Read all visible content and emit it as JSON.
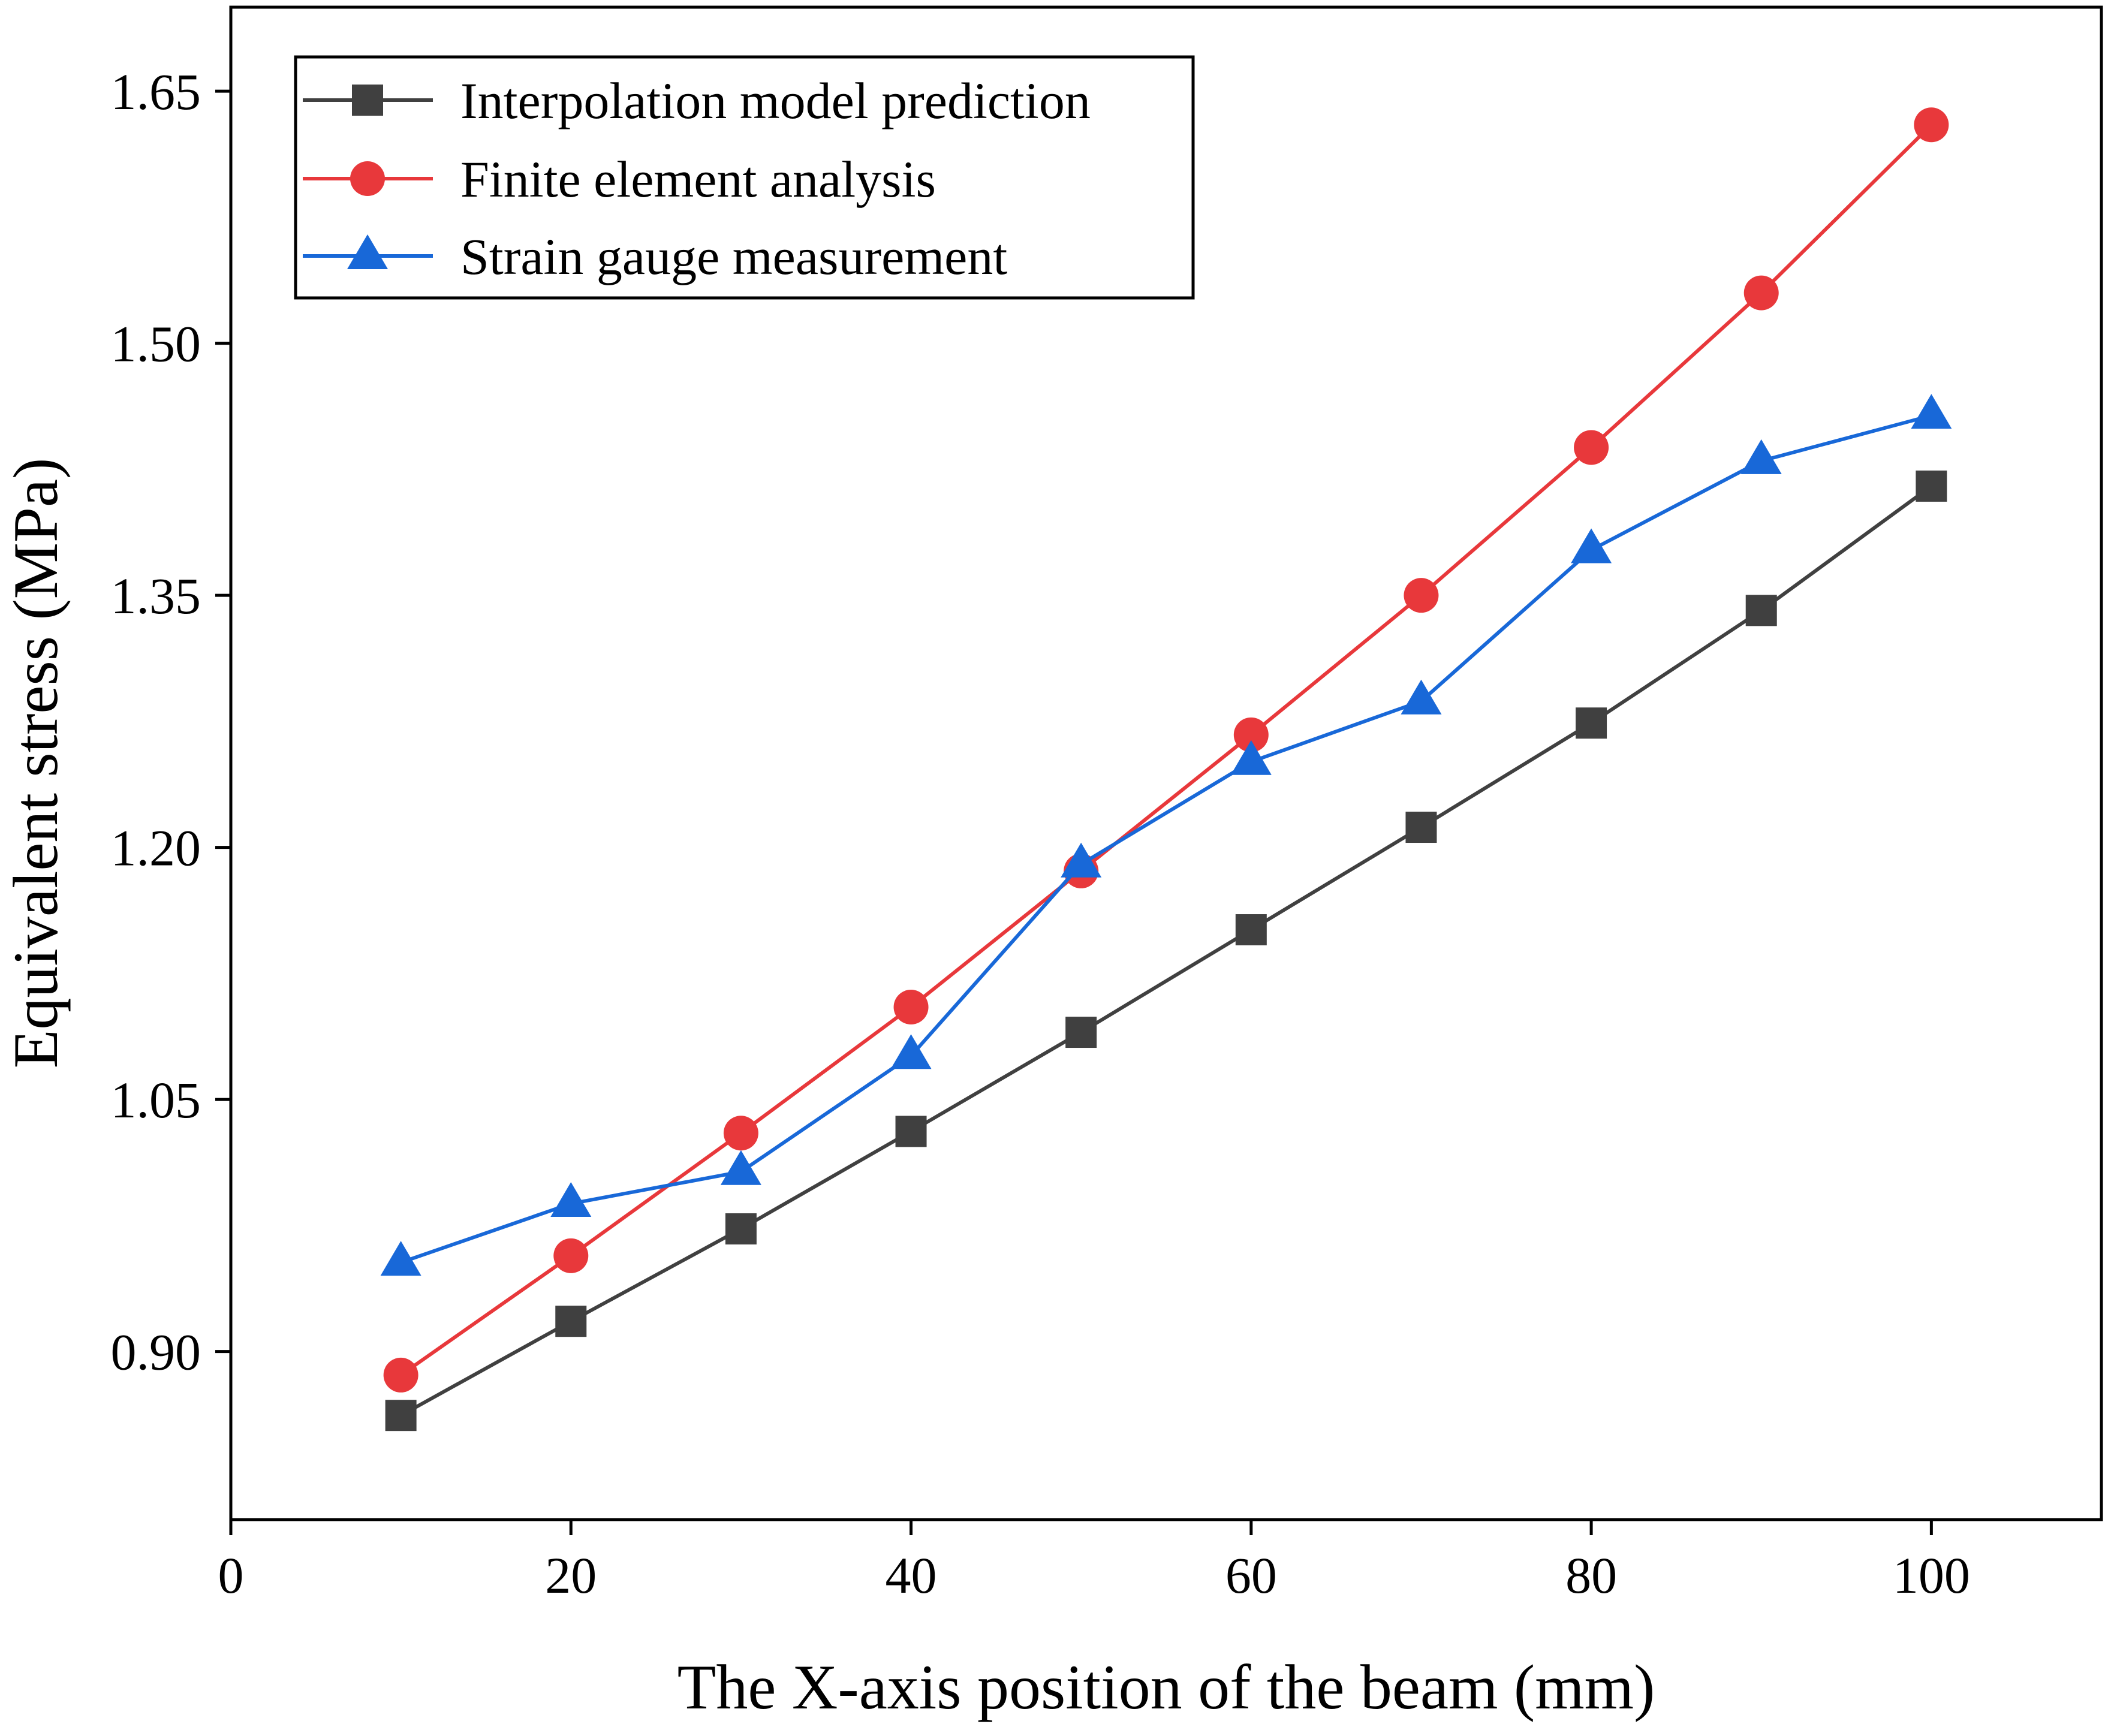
{
  "chart_data": {
    "type": "line",
    "title": "",
    "xlabel": "The X-axis position of the beam (mm)",
    "ylabel": "Equivalent stress (MPa)",
    "xlim": [
      0,
      110
    ],
    "ylim": [
      0.8,
      1.7
    ],
    "xticks": [
      0,
      20,
      40,
      60,
      80,
      100
    ],
    "xtick_labels": [
      "0",
      "20",
      "40",
      "60",
      "80",
      "100"
    ],
    "yticks": [
      0.9,
      1.05,
      1.2,
      1.35,
      1.5,
      1.65
    ],
    "ytick_labels": [
      "0.90",
      "1.05",
      "1.20",
      "1.35",
      "1.50",
      "1.65"
    ],
    "grid": false,
    "legend_position": "top-left",
    "x": [
      10,
      20,
      30,
      40,
      50,
      60,
      70,
      80,
      90,
      100
    ],
    "series": [
      {
        "name": "Interpolation model prediction",
        "color": "#404040",
        "marker": "square",
        "values": [
          0.862,
          0.918,
          0.973,
          1.031,
          1.09,
          1.151,
          1.212,
          1.274,
          1.341,
          1.415
        ]
      },
      {
        "name": "Finite element analysis",
        "color": "#e8383b",
        "marker": "circle",
        "values": [
          0.886,
          0.957,
          1.03,
          1.105,
          1.186,
          1.267,
          1.35,
          1.438,
          1.53,
          1.63
        ]
      },
      {
        "name": "Strain gauge measurement",
        "color": "#1868d8",
        "marker": "triangle",
        "values": [
          0.953,
          0.988,
          1.007,
          1.076,
          1.19,
          1.251,
          1.287,
          1.377,
          1.43,
          1.457
        ]
      }
    ]
  }
}
